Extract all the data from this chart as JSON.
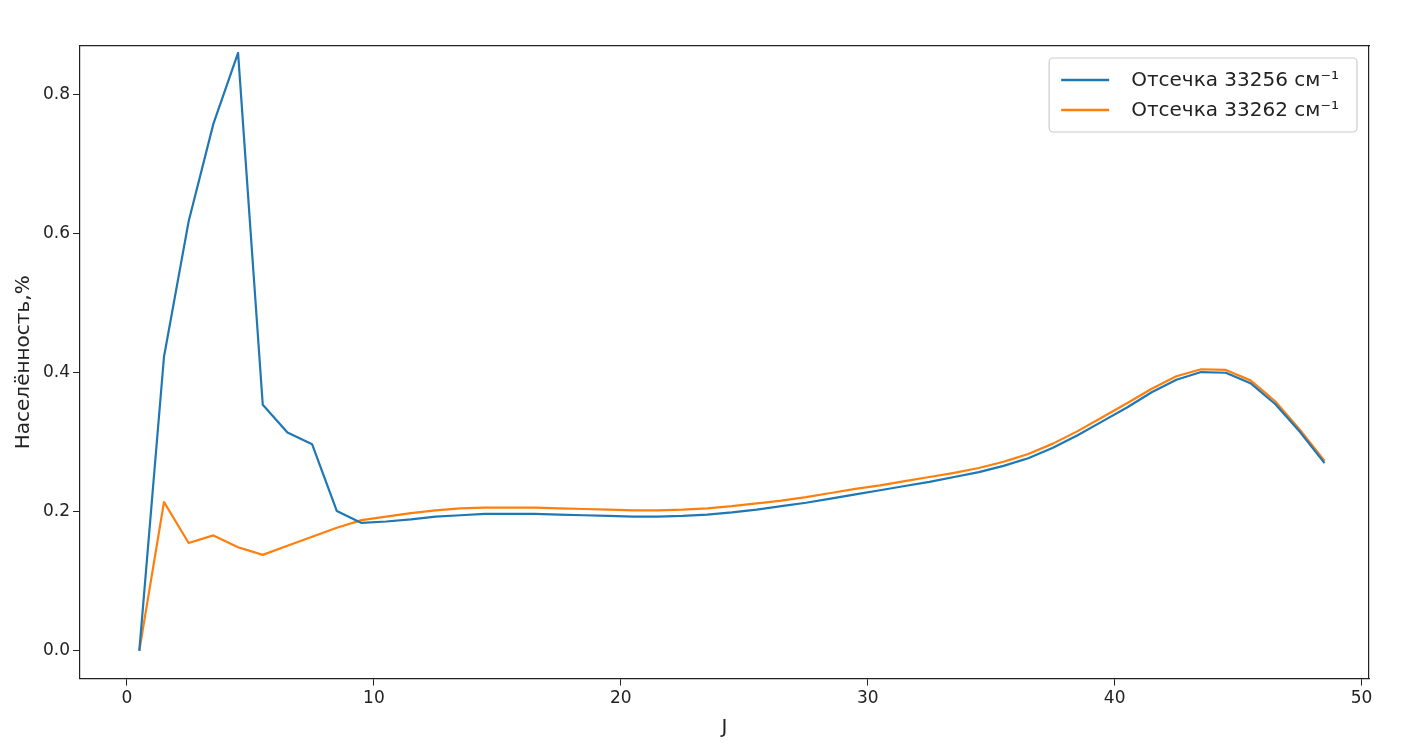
{
  "chart_data": {
    "type": "line",
    "xlabel": "J",
    "ylabel": "Населённость,%",
    "x": [
      0.5,
      1.5,
      2.5,
      3.5,
      4.5,
      5.5,
      6.5,
      7.5,
      8.5,
      9.5,
      10.5,
      11.5,
      12.5,
      13.5,
      14.5,
      15.5,
      16.5,
      17.5,
      18.5,
      19.5,
      20.5,
      21.5,
      22.5,
      23.5,
      24.5,
      25.5,
      26.5,
      27.5,
      28.5,
      29.5,
      30.5,
      31.5,
      32.5,
      33.5,
      34.5,
      35.5,
      36.5,
      37.5,
      38.5,
      39.5,
      40.5,
      41.5,
      42.5,
      43.5,
      44.5,
      45.5,
      46.5,
      47.5,
      48.5
    ],
    "series": [
      {
        "name": "Отсечка 33256 см⁻¹",
        "color": "#1f77b4",
        "values": [
          0,
          0.423,
          0.618,
          0.758,
          0.86,
          0.354,
          0.314,
          0.297,
          0.201,
          0.184,
          0.186,
          0.189,
          0.193,
          0.195,
          0.197,
          0.197,
          0.197,
          0.196,
          0.195,
          0.194,
          0.193,
          0.193,
          0.194,
          0.196,
          0.199,
          0.203,
          0.208,
          0.213,
          0.219,
          0.225,
          0.231,
          0.237,
          0.243,
          0.25,
          0.257,
          0.266,
          0.277,
          0.292,
          0.31,
          0.33,
          0.35,
          0.372,
          0.39,
          0.401,
          0.4,
          0.385,
          0.355,
          0.315,
          0.27
        ]
      },
      {
        "name": "Отсечка 33262 см⁻¹",
        "color": "#ff7f0e",
        "values": [
          0,
          0.214,
          0.155,
          0.166,
          0.149,
          0.138,
          0.151,
          0.164,
          0.177,
          0.188,
          0.193,
          0.198,
          0.202,
          0.205,
          0.206,
          0.206,
          0.206,
          0.205,
          0.204,
          0.203,
          0.202,
          0.202,
          0.203,
          0.205,
          0.208,
          0.212,
          0.216,
          0.221,
          0.227,
          0.233,
          0.238,
          0.244,
          0.25,
          0.256,
          0.263,
          0.272,
          0.283,
          0.298,
          0.316,
          0.336,
          0.356,
          0.377,
          0.395,
          0.405,
          0.404,
          0.389,
          0.359,
          0.318,
          0.273
        ]
      }
    ],
    "xlim": [
      -1.9,
      50.3
    ],
    "xticks": [
      0,
      10,
      20,
      30,
      40,
      50
    ],
    "ylim": [
      -0.04,
      0.87
    ],
    "yticks": [
      {
        "value": 0,
        "label": "0.0"
      },
      {
        "value": 0.2,
        "label": "0.2"
      },
      {
        "value": 0.4,
        "label": "0.4"
      },
      {
        "value": 0.6,
        "label": "0.6"
      },
      {
        "value": 0.8,
        "label": "0.8"
      }
    ],
    "grid": false,
    "legend": "top right",
    "marker": "none",
    "line_style": "solid"
  }
}
